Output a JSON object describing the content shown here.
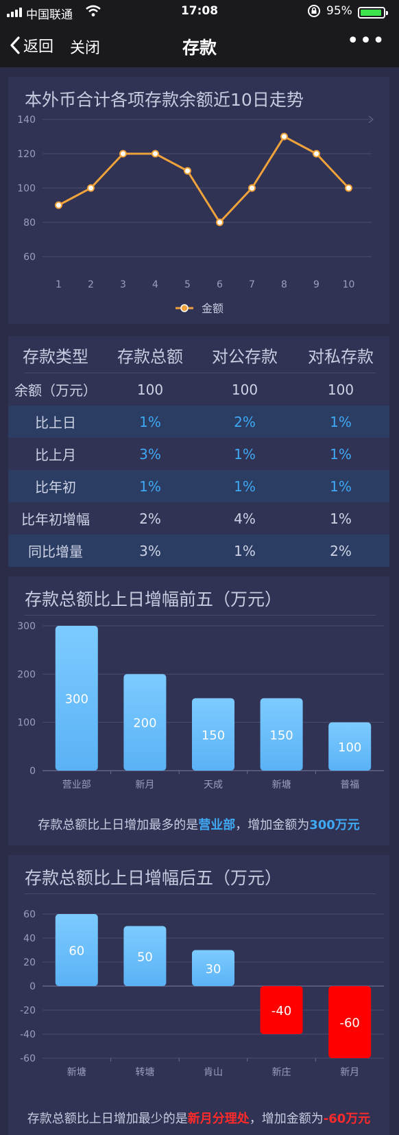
{
  "status_bar": {
    "carrier": "中国联通",
    "time": "17:08",
    "battery": "95%",
    "battery_level": 0.95
  },
  "nav": {
    "back_label": "返回",
    "close_label": "关闭",
    "title": "存款",
    "more_label": "•••"
  },
  "colors": {
    "line": "#f0a23b",
    "bar_blue": "#5ab2f5",
    "bar_red": "#ff0000",
    "highlight_blue": "#3fa9f5",
    "highlight_red": "#ff2a2a"
  },
  "trend": {
    "chart_data": {
      "type": "line",
      "title": "本外币合计各项存款余额近10日走势",
      "x": [
        "1",
        "2",
        "3",
        "4",
        "5",
        "6",
        "7",
        "8",
        "9",
        "10"
      ],
      "series": [
        {
          "name": "金额",
          "values": [
            90,
            100,
            120,
            120,
            110,
            80,
            100,
            130,
            120,
            100
          ]
        }
      ],
      "yticks": [
        "60",
        "80",
        "100",
        "120",
        "140"
      ],
      "ylim": [
        60,
        140
      ],
      "grid": true,
      "legend": "bottom-center"
    }
  },
  "table": {
    "headers": [
      "存款类型",
      "存款总额",
      "对公存款",
      "对私存款"
    ],
    "rows": [
      {
        "label": "余额（万元）",
        "total": "100",
        "corp": "100",
        "priv": "100"
      },
      {
        "label": "比上日",
        "total": "1%",
        "corp": "2%",
        "priv": "1%"
      },
      {
        "label": "比上月",
        "total": "3%",
        "corp": "1%",
        "priv": "1%"
      },
      {
        "label": "比年初",
        "total": "1%",
        "corp": "1%",
        "priv": "1%"
      },
      {
        "label": "比年初增幅",
        "total": "2%",
        "corp": "4%",
        "priv": "1%"
      },
      {
        "label": "同比增量",
        "total": "3%",
        "corp": "1%",
        "priv": "2%"
      }
    ]
  },
  "top5": {
    "chart_data": {
      "type": "bar",
      "title": "存款总额比上日增幅前五（万元）",
      "categories": [
        "营业部",
        "新月",
        "天成",
        "新塘",
        "普福"
      ],
      "values": [
        300,
        200,
        150,
        150,
        100
      ],
      "yticks": [
        "0",
        "100",
        "200",
        "300"
      ],
      "ylim": [
        0,
        300
      ],
      "grid": true
    },
    "summary_prefix": "存款总额比上日增加最多的是",
    "summary_name": "营业部",
    "summary_mid": "，增加金额为",
    "summary_amount": "300万元"
  },
  "bottom5": {
    "chart_data": {
      "type": "bar",
      "title": "存款总额比上日增幅后五（万元）",
      "categories": [
        "新塘",
        "转塘",
        "肯山",
        "新庄",
        "新月"
      ],
      "values": [
        60,
        50,
        30,
        -40,
        -60
      ],
      "yticks": [
        "-60",
        "-40",
        "-20",
        "0",
        "20",
        "40",
        "60"
      ],
      "ylim": [
        -60,
        60
      ],
      "grid": true
    },
    "summary_prefix": "存款总额比上日增加最少的是",
    "summary_name": "新月分理处",
    "summary_mid": "，增加金额为",
    "summary_amount": "-60万元"
  }
}
